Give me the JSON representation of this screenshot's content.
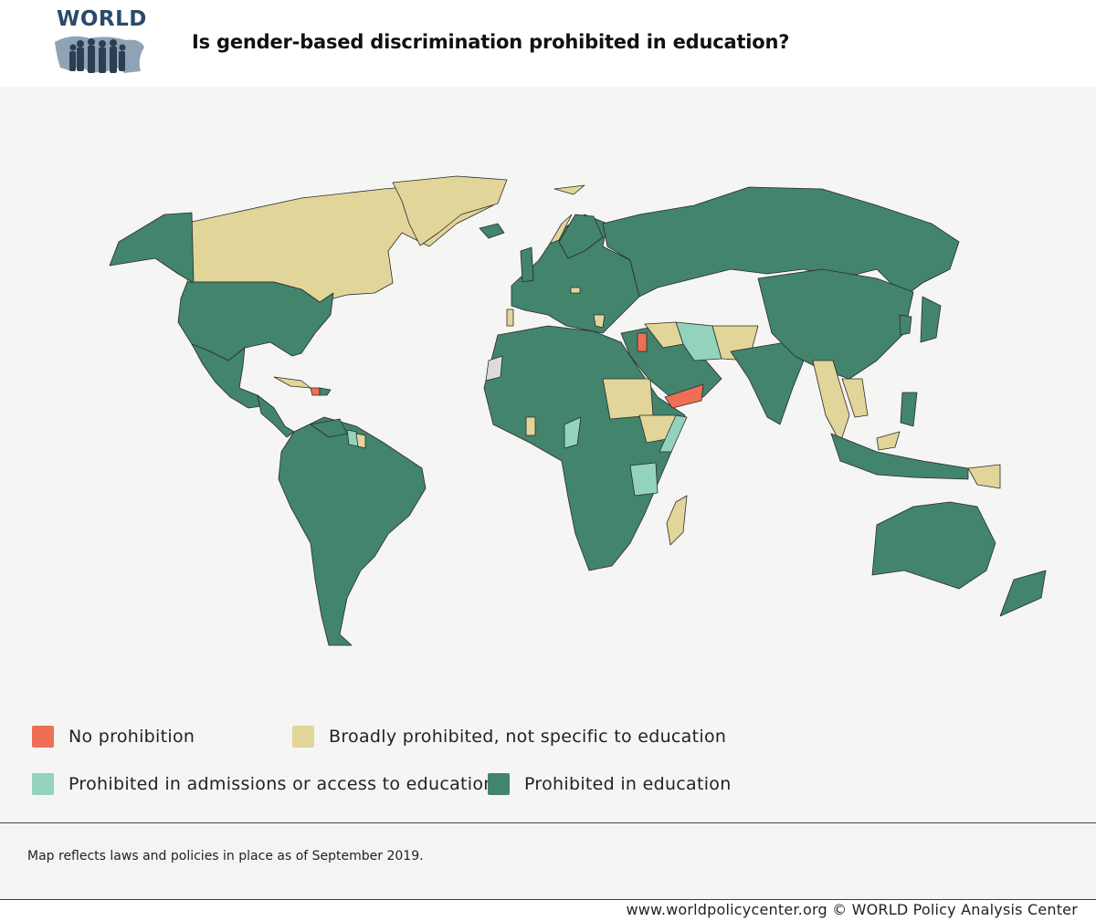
{
  "header": {
    "logo_text": "WORLD",
    "title": "Is gender-based discrimination prohibited in education?"
  },
  "colors": {
    "no_prohibition": "#ee6f55",
    "broadly_prohibited": "#e2d59a",
    "admissions_access": "#93d3bd",
    "prohibited_education": "#42846c",
    "no_data": "#dcdcdc",
    "ocean": "#f5f5f4",
    "border": "#2a2a2a"
  },
  "legend": [
    {
      "label": "No prohibition",
      "color": "#ee6f55"
    },
    {
      "label": "Broadly prohibited, not specific to education",
      "color": "#e2d59a"
    },
    {
      "label": "Prohibited in admissions or access to education",
      "color": "#93d3bd"
    },
    {
      "label": "Prohibited in education",
      "color": "#42846c"
    }
  ],
  "note": "Map reflects laws and policies in place as of September 2019.",
  "footer": "www.worldpolicycenter.org © WORLD Policy Analysis Center"
}
